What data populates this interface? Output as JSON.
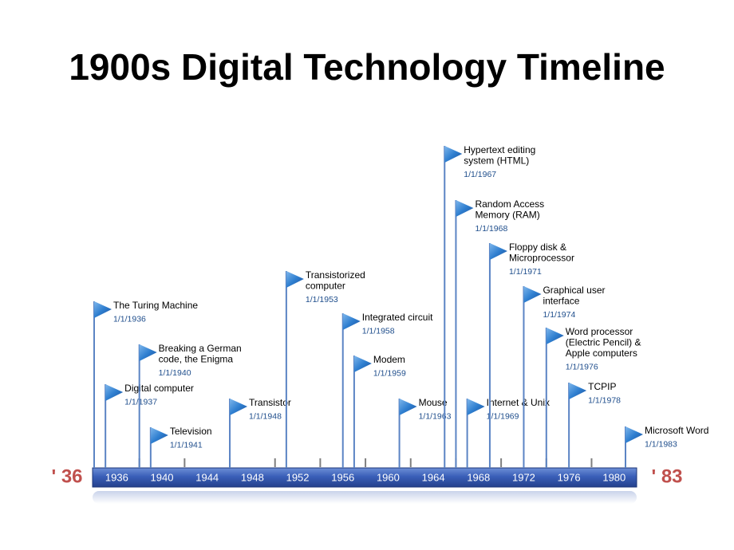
{
  "title": "1900s Digital Technology Timeline",
  "start_label": "' 36",
  "end_label": "' 83",
  "axis_labels": [
    "1936",
    "1940",
    "1944",
    "1948",
    "1952",
    "1956",
    "1960",
    "1964",
    "1968",
    "1972",
    "1976",
    "1980"
  ],
  "events": [
    {
      "lines": [
        "The Turing Machine"
      ],
      "date": "1/1/1936"
    },
    {
      "lines": [
        "Digital computer"
      ],
      "date": "1/1/1937"
    },
    {
      "lines": [
        "Breaking a German",
        "code, the Enigma"
      ],
      "date": "1/1/1940"
    },
    {
      "lines": [
        "Television"
      ],
      "date": "1/1/1941"
    },
    {
      "lines": [
        "Transistor"
      ],
      "date": "1/1/1948"
    },
    {
      "lines": [
        "Transistorized",
        "computer"
      ],
      "date": "1/1/1953"
    },
    {
      "lines": [
        "Integrated circuit"
      ],
      "date": "1/1/1958"
    },
    {
      "lines": [
        "Modem"
      ],
      "date": "1/1/1959"
    },
    {
      "lines": [
        "Mouse"
      ],
      "date": "1/1/1963"
    },
    {
      "lines": [
        "Hypertext editing",
        "system (HTML)"
      ],
      "date": "1/1/1967"
    },
    {
      "lines": [
        "Random Access",
        "Memory (RAM)"
      ],
      "date": "1/1/1968"
    },
    {
      "lines": [
        "Internet & Unix"
      ],
      "date": "1/1/1969"
    },
    {
      "lines": [
        "Floppy disk &",
        "Microprocessor"
      ],
      "date": "1/1/1971"
    },
    {
      "lines": [
        "Graphical user",
        "interface"
      ],
      "date": "1/1/1974"
    },
    {
      "lines": [
        "Word processor",
        "(Electric Pencil) &",
        "Apple computers"
      ],
      "date": "1/1/1976"
    },
    {
      "lines": [
        "TCPIP"
      ],
      "date": "1/1/1978"
    },
    {
      "lines": [
        "Microsoft Word"
      ],
      "date": "1/1/1983"
    }
  ]
}
